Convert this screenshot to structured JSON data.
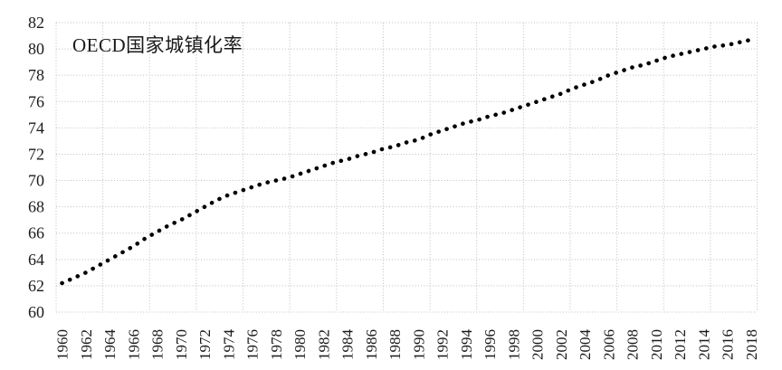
{
  "chart_data": {
    "type": "line",
    "title": "OECD国家城镇化率",
    "xlabel": "",
    "ylabel": "",
    "line_style": "dotted",
    "line_color": "#000000",
    "grid_color": "#bdbdbd",
    "text_color": "#1a1a1a",
    "background_color": "#ffffff",
    "grid": true,
    "legend_position": "none",
    "ylim": [
      60,
      82
    ],
    "yticks": [
      60,
      62,
      64,
      66,
      68,
      70,
      72,
      74,
      76,
      78,
      80,
      82
    ],
    "xticks": [
      1960,
      1962,
      1964,
      1966,
      1968,
      1970,
      1972,
      1974,
      1976,
      1978,
      1980,
      1982,
      1984,
      1986,
      1988,
      1990,
      1992,
      1994,
      1996,
      1998,
      2000,
      2002,
      2004,
      2006,
      2008,
      2010,
      2012,
      2014,
      2016,
      2018
    ],
    "x": [
      1960,
      1961,
      1962,
      1963,
      1964,
      1965,
      1966,
      1967,
      1968,
      1969,
      1970,
      1971,
      1972,
      1973,
      1974,
      1975,
      1976,
      1977,
      1978,
      1979,
      1980,
      1981,
      1982,
      1983,
      1984,
      1985,
      1986,
      1987,
      1988,
      1989,
      1990,
      1991,
      1992,
      1993,
      1994,
      1995,
      1996,
      1997,
      1998,
      1999,
      2000,
      2001,
      2002,
      2003,
      2004,
      2005,
      2006,
      2007,
      2008,
      2009,
      2010,
      2011,
      2012,
      2013,
      2014,
      2015,
      2016,
      2017,
      2018
    ],
    "series": [
      {
        "name": "OECD国家城镇化率",
        "values": [
          62.2,
          62.6,
          63.0,
          63.5,
          64.0,
          64.5,
          65.0,
          65.6,
          66.1,
          66.6,
          67.0,
          67.5,
          68.0,
          68.5,
          68.9,
          69.2,
          69.5,
          69.8,
          70.0,
          70.2,
          70.5,
          70.8,
          71.1,
          71.4,
          71.6,
          71.9,
          72.1,
          72.4,
          72.6,
          72.9,
          73.1,
          73.5,
          73.8,
          74.1,
          74.4,
          74.6,
          74.9,
          75.1,
          75.4,
          75.7,
          76.0,
          76.3,
          76.6,
          77.0,
          77.3,
          77.6,
          78.0,
          78.3,
          78.6,
          78.8,
          79.1,
          79.4,
          79.6,
          79.8,
          80.0,
          80.2,
          80.3,
          80.5,
          80.7
        ]
      }
    ]
  }
}
